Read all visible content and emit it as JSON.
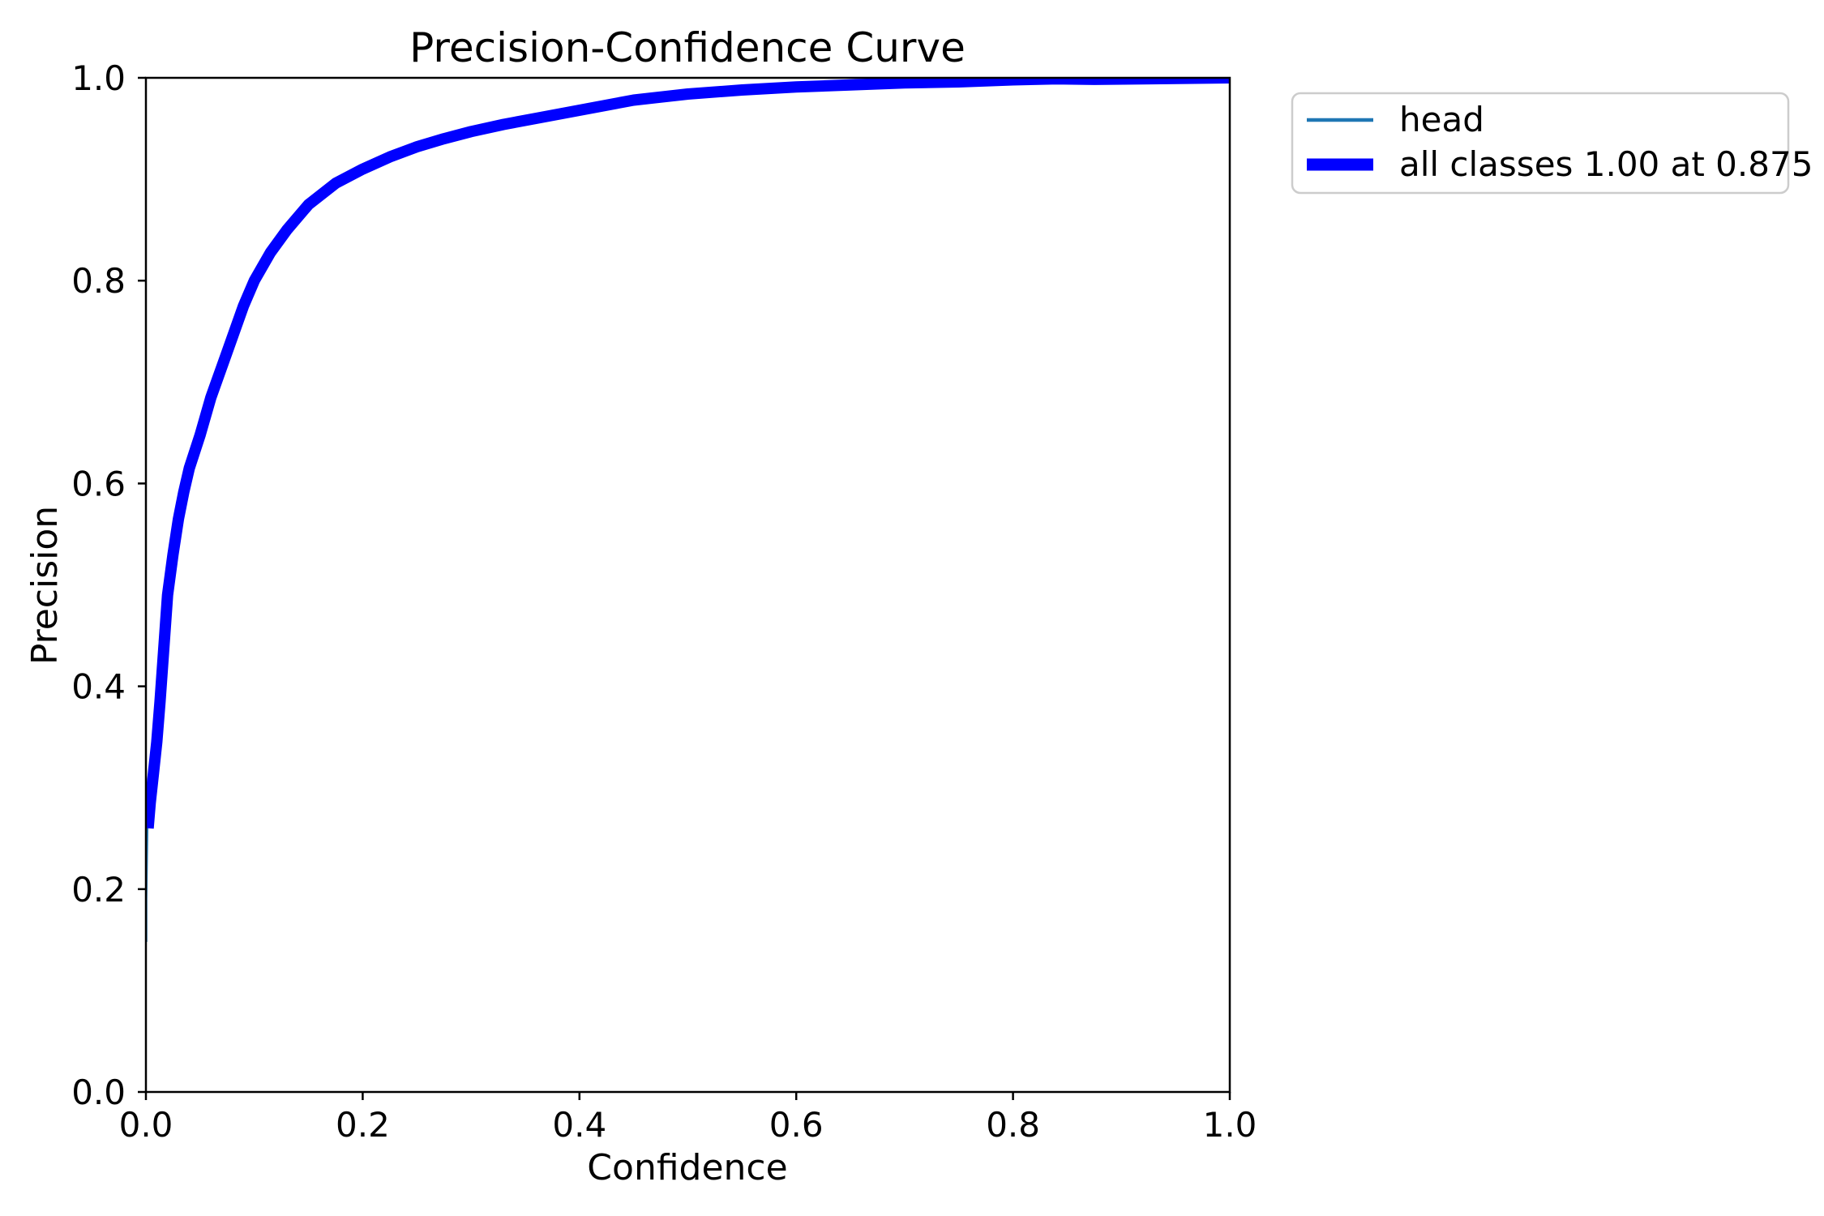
{
  "chart_data": {
    "type": "line",
    "title": "Precision-Confidence Curve",
    "xlabel": "Confidence",
    "ylabel": "Precision",
    "xlim": [
      0,
      1
    ],
    "ylim": [
      0,
      1
    ],
    "grid": false,
    "background_color": "#ffffff",
    "spine_color": "#000000",
    "x_ticks": [
      {
        "value": 0.0,
        "label": "0.0"
      },
      {
        "value": 0.2,
        "label": "0.2"
      },
      {
        "value": 0.4,
        "label": "0.4"
      },
      {
        "value": 0.6,
        "label": "0.6"
      },
      {
        "value": 0.8,
        "label": "0.8"
      },
      {
        "value": 1.0,
        "label": "1.0"
      }
    ],
    "y_ticks": [
      {
        "value": 0.0,
        "label": "0.0"
      },
      {
        "value": 0.2,
        "label": "0.2"
      },
      {
        "value": 0.4,
        "label": "0.4"
      },
      {
        "value": 0.6,
        "label": "0.6"
      },
      {
        "value": 0.8,
        "label": "0.8"
      },
      {
        "value": 1.0,
        "label": "1.0"
      }
    ],
    "legend": {
      "position": "outside-upper-right",
      "border_color": "#cccccc",
      "background_color": "#ffffff",
      "entries": [
        {
          "label": "head",
          "color": "#1f77b4",
          "sample_linewidth": 4.5
        },
        {
          "label": "all classes 1.00 at 0.875",
          "color": "#0000ff",
          "sample_linewidth": 15
        }
      ]
    },
    "series": [
      {
        "name": "head",
        "color": "#1f77b4",
        "linewidth": 3.5,
        "points": [
          [
            0.0,
            0.148
          ],
          [
            0.0,
            0.19
          ],
          [
            0.0005,
            0.23
          ],
          [
            0.001,
            0.26
          ],
          [
            0.002,
            0.285
          ],
          [
            0.005,
            0.315
          ],
          [
            0.008,
            0.345
          ],
          [
            0.011,
            0.385
          ],
          [
            0.014,
            0.43
          ],
          [
            0.018,
            0.49
          ],
          [
            0.023,
            0.53
          ],
          [
            0.028,
            0.565
          ],
          [
            0.033,
            0.592
          ],
          [
            0.038,
            0.615
          ],
          [
            0.048,
            0.648
          ],
          [
            0.058,
            0.685
          ],
          [
            0.073,
            0.73
          ],
          [
            0.088,
            0.775
          ],
          [
            0.098,
            0.8
          ],
          [
            0.113,
            0.828
          ],
          [
            0.128,
            0.85
          ],
          [
            0.148,
            0.875
          ],
          [
            0.173,
            0.896
          ],
          [
            0.198,
            0.91
          ],
          [
            0.248,
            0.932
          ],
          [
            0.298,
            0.947
          ],
          [
            0.398,
            0.968
          ],
          [
            0.498,
            0.984
          ],
          [
            0.598,
            0.991
          ],
          [
            0.698,
            0.995
          ],
          [
            0.798,
            0.998
          ],
          [
            0.873,
            0.9985
          ],
          [
            0.918,
            0.999
          ],
          [
            0.958,
            0.9995
          ],
          [
            1.0,
            1.0
          ]
        ]
      },
      {
        "name": "all classes 1.00 at 0.875",
        "color": "#0000ff",
        "linewidth": 14,
        "points": [
          [
            0.002,
            0.26
          ],
          [
            0.004,
            0.285
          ],
          [
            0.007,
            0.315
          ],
          [
            0.01,
            0.345
          ],
          [
            0.013,
            0.385
          ],
          [
            0.016,
            0.43
          ],
          [
            0.02,
            0.49
          ],
          [
            0.025,
            0.53
          ],
          [
            0.03,
            0.565
          ],
          [
            0.035,
            0.592
          ],
          [
            0.04,
            0.615
          ],
          [
            0.05,
            0.648
          ],
          [
            0.06,
            0.685
          ],
          [
            0.075,
            0.73
          ],
          [
            0.09,
            0.775
          ],
          [
            0.1,
            0.8
          ],
          [
            0.115,
            0.828
          ],
          [
            0.13,
            0.85
          ],
          [
            0.15,
            0.875
          ],
          [
            0.175,
            0.896
          ],
          [
            0.2,
            0.91
          ],
          [
            0.225,
            0.922
          ],
          [
            0.25,
            0.932
          ],
          [
            0.275,
            0.94
          ],
          [
            0.3,
            0.947
          ],
          [
            0.33,
            0.954
          ],
          [
            0.36,
            0.96
          ],
          [
            0.4,
            0.968
          ],
          [
            0.45,
            0.978
          ],
          [
            0.5,
            0.984
          ],
          [
            0.55,
            0.988
          ],
          [
            0.6,
            0.991
          ],
          [
            0.65,
            0.993
          ],
          [
            0.7,
            0.995
          ],
          [
            0.75,
            0.996
          ],
          [
            0.8,
            0.998
          ],
          [
            0.84,
            0.999
          ],
          [
            0.875,
            0.9985
          ],
          [
            0.92,
            0.999
          ],
          [
            0.96,
            0.9995
          ],
          [
            1.0,
            1.0
          ]
        ]
      }
    ]
  }
}
